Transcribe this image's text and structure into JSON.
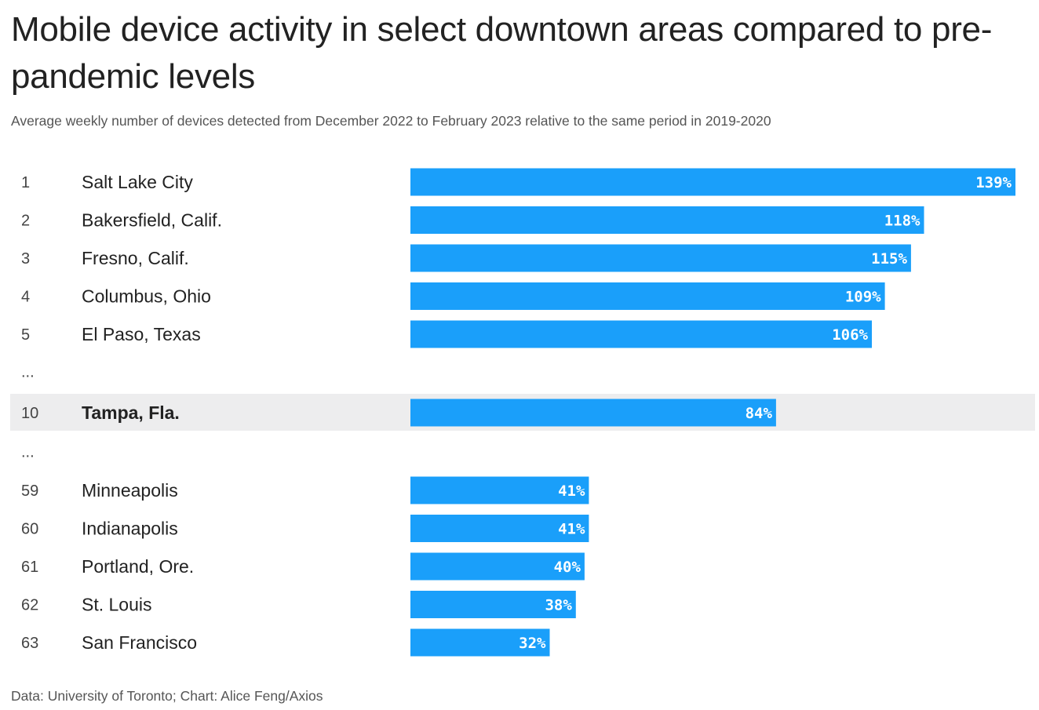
{
  "chart_data": {
    "type": "bar",
    "orientation": "horizontal",
    "title": "Mobile device activity in select downtown areas compared to pre-pandemic levels",
    "subtitle": "Average weekly number of devices detected from December 2022 to February 2023 relative to the same period in 2019-2020",
    "source": "Data: University of Toronto; Chart: Alice Feng/Axios",
    "value_suffix": "%",
    "xlim": [
      0,
      139
    ],
    "grid": false,
    "bar_color": "#1a9ffa",
    "highlight_row_color": "#ededee",
    "rows": [
      {
        "rank": "1",
        "city": "Salt Lake City",
        "value": 139
      },
      {
        "rank": "2",
        "city": "Bakersfield, Calif.",
        "value": 118
      },
      {
        "rank": "3",
        "city": "Fresno, Calif.",
        "value": 115
      },
      {
        "rank": "4",
        "city": "Columbus, Ohio",
        "value": 109
      },
      {
        "rank": "5",
        "city": "El Paso, Texas",
        "value": 106
      },
      {
        "ellipsis": "..."
      },
      {
        "rank": "10",
        "city": "Tampa, Fla.",
        "value": 84,
        "highlight": true
      },
      {
        "ellipsis": "..."
      },
      {
        "rank": "59",
        "city": "Minneapolis",
        "value": 41
      },
      {
        "rank": "60",
        "city": "Indianapolis",
        "value": 41
      },
      {
        "rank": "61",
        "city": "Portland, Ore.",
        "value": 40
      },
      {
        "rank": "62",
        "city": "St. Louis",
        "value": 38
      },
      {
        "rank": "63",
        "city": "San Francisco",
        "value": 32
      }
    ]
  }
}
